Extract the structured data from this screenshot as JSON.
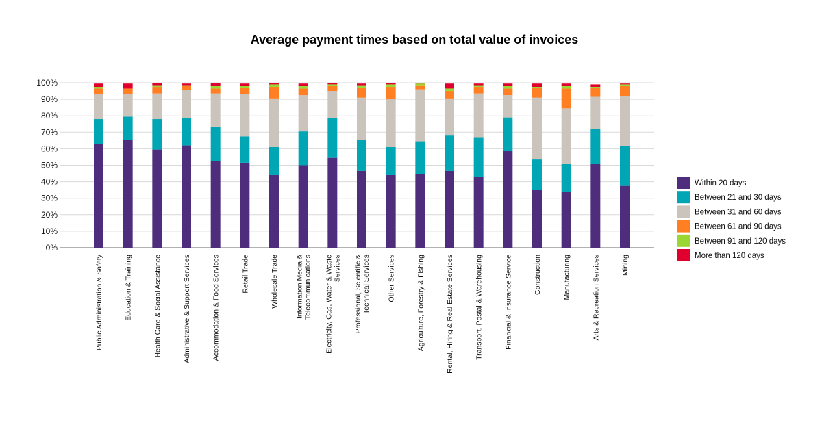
{
  "chart_data": {
    "type": "bar",
    "stacked": true,
    "title": "Average payment times based on total value of invoices",
    "xlabel": "",
    "ylabel": "",
    "ylim": [
      0,
      100
    ],
    "y_ticks": [
      "0%",
      "10%",
      "20%",
      "30%",
      "40%",
      "50%",
      "60%",
      "70%",
      "80%",
      "90%",
      "100%"
    ],
    "grid": true,
    "legend_position": "right",
    "categories": [
      [
        "Public Administration & Safety"
      ],
      [
        "Education & Training"
      ],
      [
        "Health Care & Social Assistance"
      ],
      [
        "Administrative & Support Services"
      ],
      [
        "Accommodation & Food Services"
      ],
      [
        "Retail Trade"
      ],
      [
        "Wholesale Trade"
      ],
      [
        "Information Media &",
        "Telecommunications"
      ],
      [
        "Electricity, Gas, Water & Waste",
        "Services"
      ],
      [
        "Professional, Scientific &",
        "Technical Services"
      ],
      [
        "Other Services"
      ],
      [
        "Agriculture, Forestry & Fishing"
      ],
      [
        "Rental, Hiring & Real Estate Services"
      ],
      [
        "Transport, Postal & Warehousing"
      ],
      [
        "Financial & Insurance Service"
      ],
      [
        "Construction"
      ],
      [
        "Manufacturing"
      ],
      [
        "Arts & Recreation Services"
      ],
      [
        "Mining"
      ]
    ],
    "series": [
      {
        "name": "Within 20 days",
        "color": "#4e2d7c",
        "values": [
          63,
          65.5,
          59.5,
          62,
          52.5,
          51.5,
          44,
          50,
          54.5,
          46.5,
          44,
          44.5,
          46.5,
          43,
          58.5,
          35,
          34,
          51,
          37.5
        ]
      },
      {
        "name": "Between 21 and 30 days",
        "color": "#00a6b4",
        "values": [
          15,
          14,
          18.5,
          16.5,
          21,
          16,
          17,
          20.5,
          24,
          19,
          17,
          20,
          21.5,
          24,
          20.5,
          18.5,
          17,
          21,
          24
        ]
      },
      {
        "name": "Between 31 and 60 days",
        "color": "#cbc4bd",
        "values": [
          15,
          13.5,
          15.5,
          17,
          20,
          25.5,
          29.5,
          22,
          16.5,
          25.5,
          29,
          31.5,
          22.5,
          26.5,
          13.5,
          37.5,
          33.5,
          19.5,
          30.5
        ]
      },
      {
        "name": "Between 61 and 90 days",
        "color": "#ff7f22",
        "values": [
          3.5,
          3.5,
          4,
          2.5,
          3,
          4,
          7,
          4,
          3,
          6,
          7.5,
          2.5,
          4.5,
          4,
          4,
          6,
          12,
          5.5,
          6
        ]
      },
      {
        "name": "Between 91 and 120 days",
        "color": "#9bd732",
        "values": [
          1,
          0,
          1,
          0.5,
          1.5,
          1,
          1.5,
          1.5,
          1,
          1.5,
          1.5,
          1,
          1.5,
          1,
          1.5,
          0.5,
          1.5,
          0.5,
          1
        ]
      },
      {
        "name": "More than 120 days",
        "color": "#e0002e",
        "values": [
          2,
          3,
          1.5,
          1,
          2,
          1.5,
          1,
          1.5,
          1,
          1,
          1,
          0.5,
          3,
          1,
          1.5,
          2,
          1.5,
          1.5,
          0.5
        ]
      }
    ]
  }
}
